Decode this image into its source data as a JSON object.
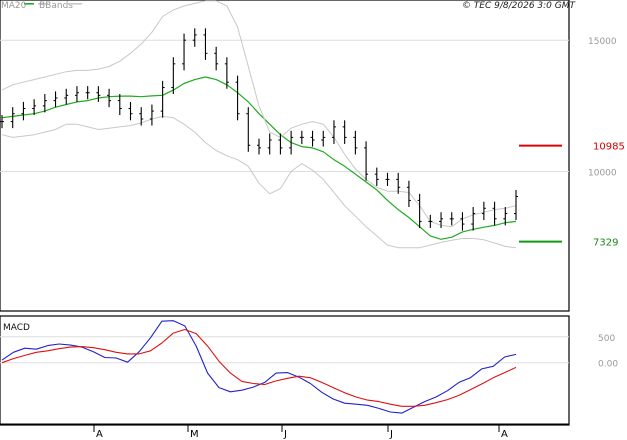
{
  "header": {
    "legend_ma": "MA20",
    "legend_bb": "BBands",
    "credit": "© TEC 9/8/2026 3:0 GMT"
  },
  "macd_panel": {
    "label": "MACD"
  },
  "colors": {
    "price": "#000000",
    "ma20": "#22aa22",
    "bbands": "#c8c8c8",
    "resistance": "#dd0000",
    "support": "#119911",
    "macd": "#2222cc",
    "signal": "#dd1111",
    "grid": "#dddddd"
  },
  "chart_data": [
    {
      "type": "line",
      "title": "",
      "y_ticks": [
        {
          "label": "15000",
          "value": 15000
        },
        {
          "label": "10000",
          "value": 10000
        }
      ],
      "x_ticks": [
        "A",
        "M",
        "J",
        "J",
        "A"
      ],
      "ylim": [
        4690,
        16530
      ],
      "levels": [
        {
          "label": "10985",
          "value": 10985,
          "color": "#dd0000"
        },
        {
          "label": "7329",
          "value": 7329,
          "color": "#119911"
        }
      ],
      "series": [
        {
          "name": "MA20",
          "values": [
            12050,
            12100,
            12150,
            12200,
            12300,
            12450,
            12550,
            12650,
            12700,
            12800,
            12850,
            12870,
            12870,
            12850,
            12880,
            12900,
            13100,
            13350,
            13500,
            13600,
            13500,
            13300,
            13000,
            12650,
            12200,
            11800,
            11400,
            11100,
            10950,
            10900,
            10750,
            10450,
            10200,
            9900,
            9600,
            9300,
            8900,
            8550,
            8250,
            7900,
            7550,
            7420,
            7500,
            7700,
            7800,
            7880,
            7950,
            8050,
            8100
          ]
        },
        {
          "name": "BBands",
          "values": [
            13100,
            13300,
            13400,
            13500,
            13600,
            13700,
            13800,
            13850,
            13850,
            13900,
            14000,
            14200,
            14500,
            14850,
            15300,
            15900,
            16150,
            16300,
            16400,
            16500,
            16500,
            16300,
            15500,
            14000,
            12500,
            11500,
            11300,
            11650,
            11800,
            11900,
            11800,
            11300,
            10650,
            10100,
            9700,
            9400,
            9250,
            9250,
            9200,
            8700,
            8100,
            7950,
            7900,
            8200,
            8350,
            8450,
            8550,
            8600,
            8700
          ]
        },
        {
          "name": "BBands",
          "values": [
            11400,
            11300,
            11350,
            11400,
            11500,
            11600,
            11800,
            11800,
            11700,
            11600,
            11650,
            11700,
            11750,
            11850,
            12000,
            12100,
            12050,
            11800,
            11500,
            11100,
            10800,
            10600,
            10450,
            10200,
            9550,
            9150,
            9350,
            10000,
            10300,
            10050,
            9700,
            9200,
            8700,
            8300,
            7900,
            7550,
            7200,
            7100,
            7100,
            7100,
            7200,
            7300,
            7380,
            7450,
            7450,
            7400,
            7280,
            7150,
            7100
          ]
        },
        {
          "name": "Price",
          "values": [
            11900,
            12200,
            12400,
            12500,
            12700,
            12800,
            12900,
            13000,
            13000,
            12900,
            12700,
            12400,
            12200,
            12000,
            12300,
            13200,
            14100,
            15000,
            15200,
            14500,
            14100,
            13400,
            12200,
            11000,
            10900,
            11200,
            10900,
            11300,
            11300,
            11200,
            11300,
            11700,
            11300,
            10900,
            9900,
            9700,
            9700,
            9400,
            8900,
            8100,
            8100,
            8200,
            8200,
            8000,
            8400,
            8600,
            8200,
            8400,
            9050
          ]
        }
      ]
    },
    {
      "type": "line",
      "title": "MACD",
      "y_ticks": [
        {
          "label": "500",
          "value": 500
        },
        {
          "label": "0.00",
          "value": 0
        }
      ],
      "ylim": [
        -1200,
        900
      ],
      "series": [
        {
          "name": "MACD",
          "values": [
            50,
            200,
            280,
            260,
            330,
            360,
            340,
            300,
            210,
            100,
            90,
            10,
            210,
            480,
            800,
            810,
            710,
            320,
            -200,
            -480,
            -560,
            -530,
            -470,
            -380,
            -200,
            -190,
            -280,
            -400,
            -570,
            -700,
            -780,
            -800,
            -820,
            -880,
            -950,
            -970,
            -860,
            -750,
            -660,
            -540,
            -380,
            -290,
            -120,
            -70,
            110,
            160
          ]
        },
        {
          "name": "Signal",
          "values": [
            0,
            80,
            140,
            200,
            230,
            270,
            300,
            310,
            290,
            250,
            200,
            170,
            170,
            230,
            380,
            570,
            640,
            560,
            320,
            30,
            -200,
            -360,
            -400,
            -420,
            -350,
            -300,
            -260,
            -290,
            -380,
            -480,
            -580,
            -660,
            -720,
            -750,
            -800,
            -840,
            -840,
            -820,
            -770,
            -710,
            -630,
            -520,
            -410,
            -290,
            -190,
            -90
          ]
        }
      ]
    }
  ]
}
